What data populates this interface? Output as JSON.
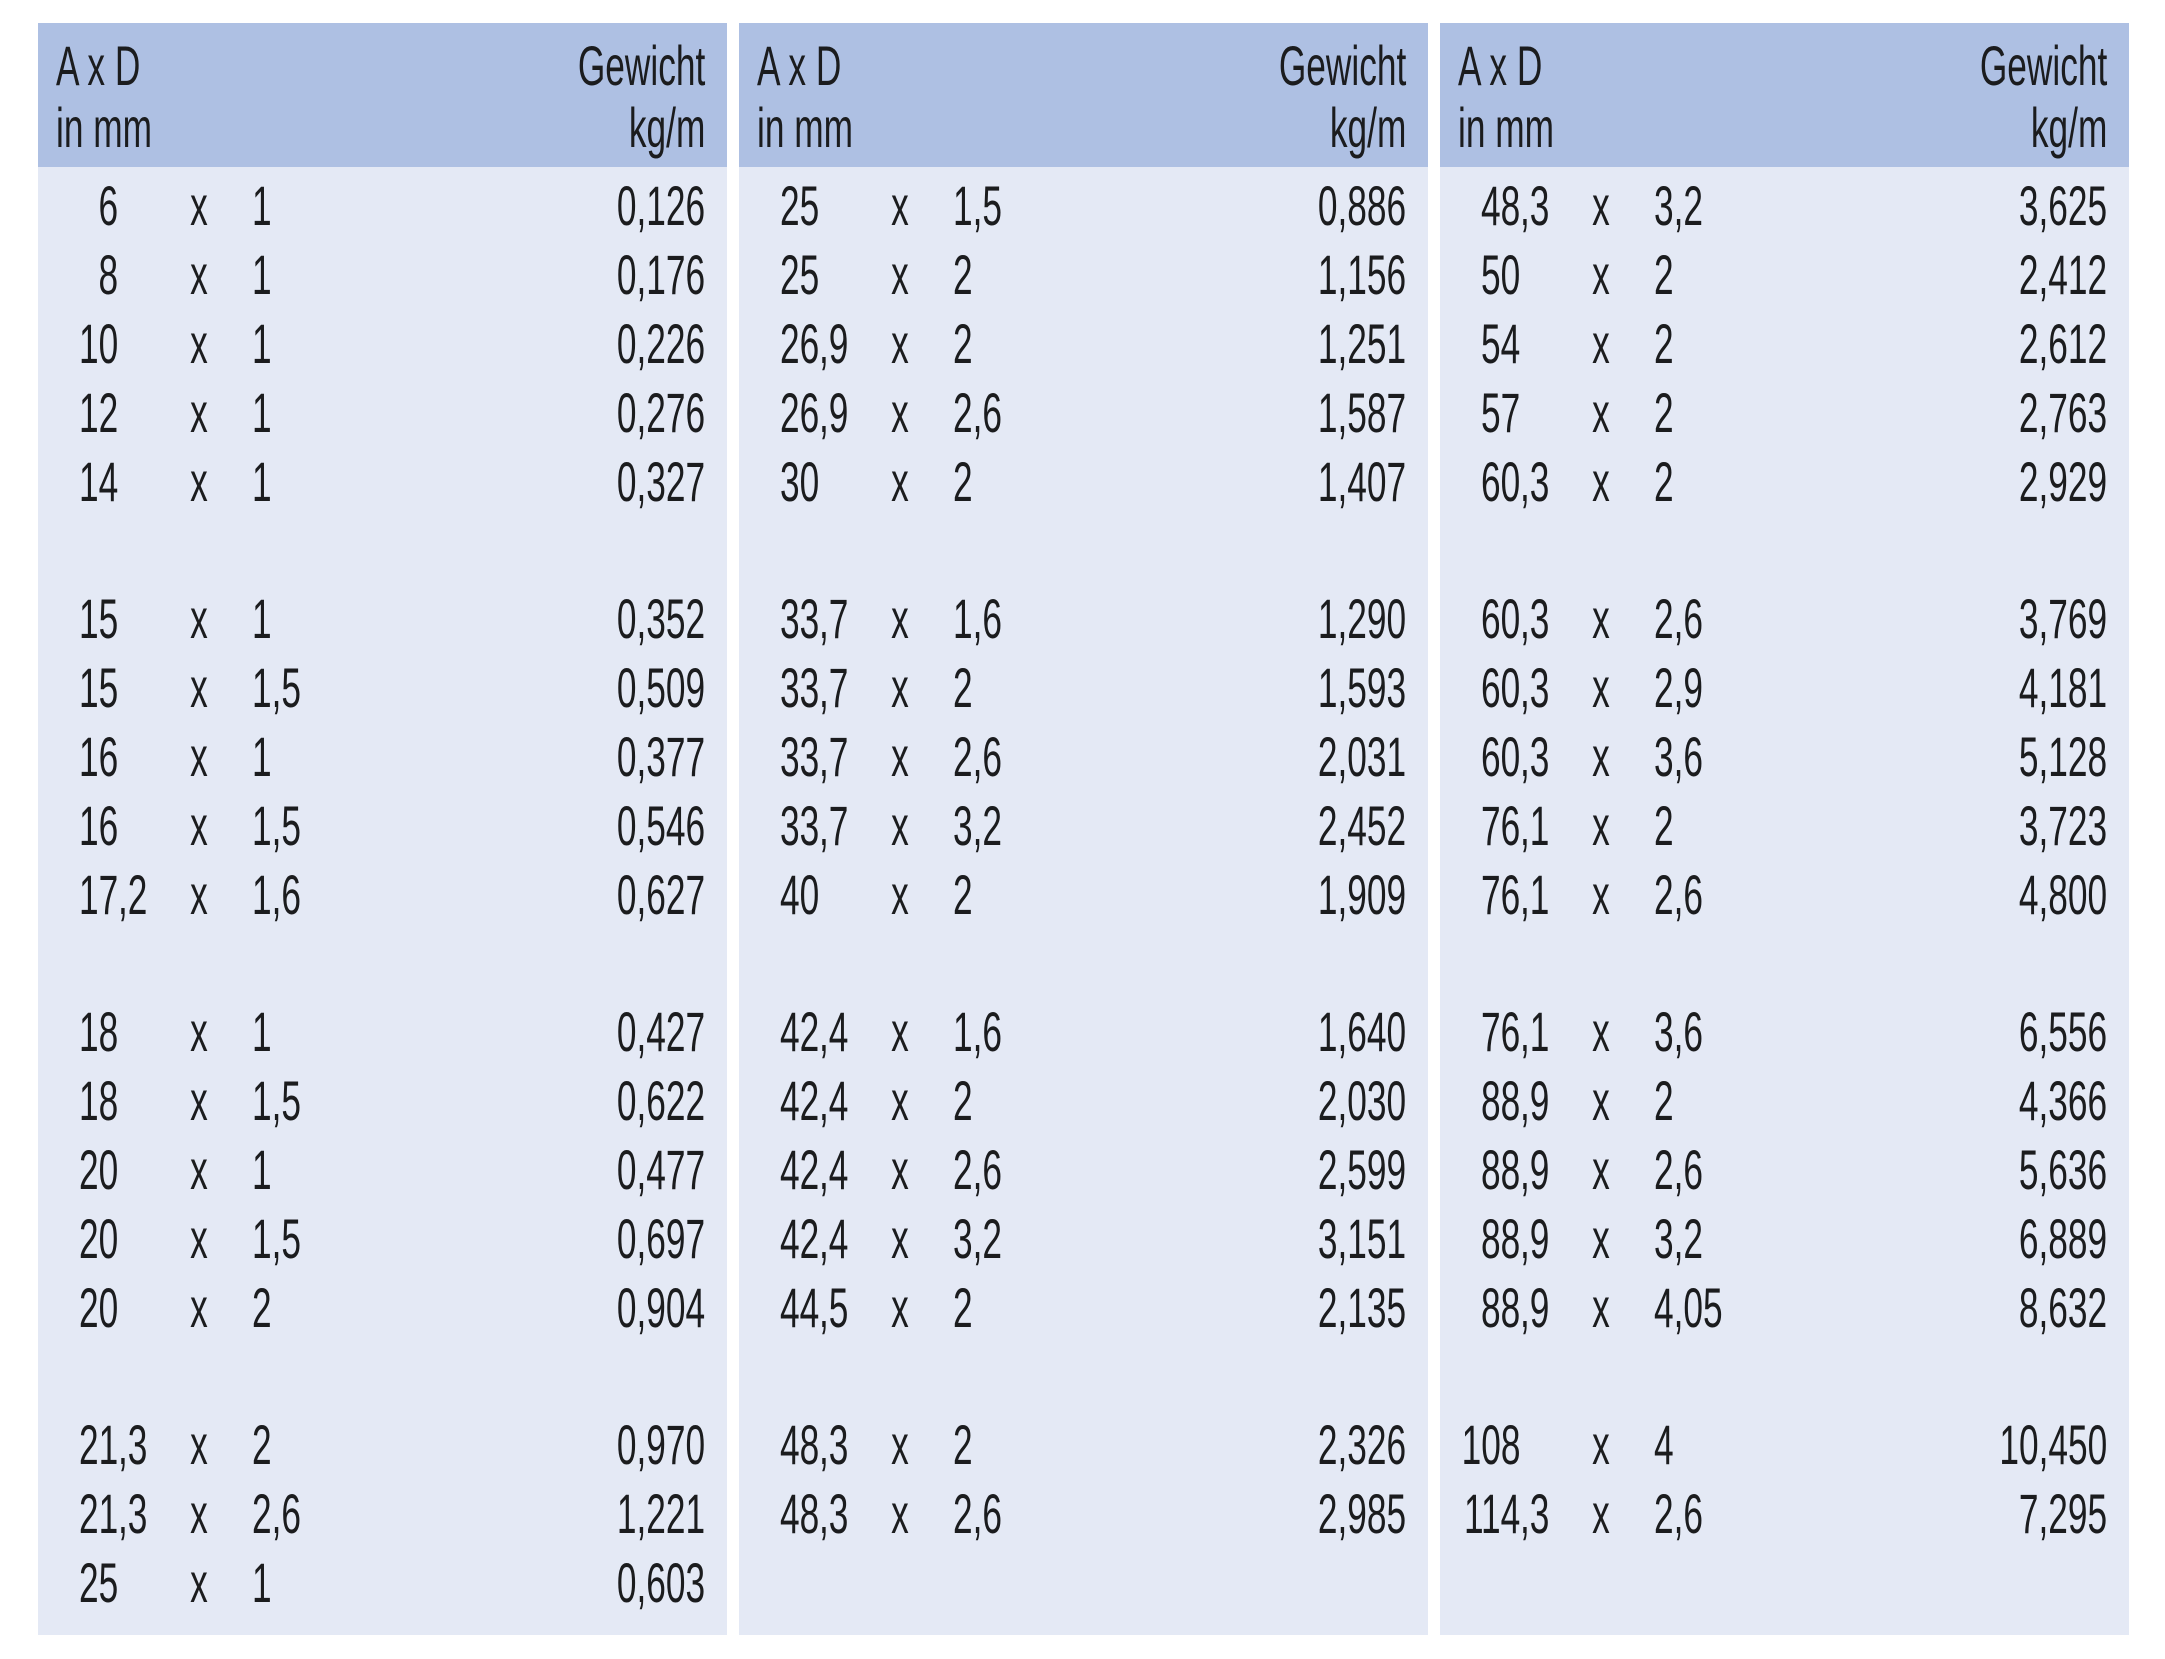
{
  "page_background": "#ffffff",
  "colors": {
    "header_bg": "#aec0e3",
    "body_bg": "#e4e9f5",
    "text": "#1b1c1e"
  },
  "column_header": {
    "dim_line1": "A x D",
    "dim_line2": "in mm",
    "weight_line1": "Gewicht",
    "weight_line2": "kg/m"
  },
  "separator": "x",
  "tables": [
    {
      "groups": [
        [
          {
            "a": "6",
            "d": "1",
            "weight": "0,126"
          },
          {
            "a": "8",
            "d": "1",
            "weight": "0,176"
          },
          {
            "a": "10",
            "d": "1",
            "weight": "0,226"
          },
          {
            "a": "12",
            "d": "1",
            "weight": "0,276"
          },
          {
            "a": "14",
            "d": "1",
            "weight": "0,327"
          }
        ],
        [
          {
            "a": "15",
            "d": "1",
            "weight": "0,352"
          },
          {
            "a": "15",
            "d": "1,5",
            "weight": "0,509"
          },
          {
            "a": "16",
            "d": "1",
            "weight": "0,377"
          },
          {
            "a": "16",
            "d": "1,5",
            "weight": "0,546"
          },
          {
            "a": "17,2",
            "d": "1,6",
            "weight": "0,627"
          }
        ],
        [
          {
            "a": "18",
            "d": "1",
            "weight": "0,427"
          },
          {
            "a": "18",
            "d": "1,5",
            "weight": "0,622"
          },
          {
            "a": "20",
            "d": "1",
            "weight": "0,477"
          },
          {
            "a": "20",
            "d": "1,5",
            "weight": "0,697"
          },
          {
            "a": "20",
            "d": "2",
            "weight": "0,904"
          }
        ],
        [
          {
            "a": "21,3",
            "d": "2",
            "weight": "0,970"
          },
          {
            "a": "21,3",
            "d": "2,6",
            "weight": "1,221"
          },
          {
            "a": "25",
            "d": "1",
            "weight": "0,603"
          }
        ]
      ]
    },
    {
      "groups": [
        [
          {
            "a": "25",
            "d": "1,5",
            "weight": "0,886"
          },
          {
            "a": "25",
            "d": "2",
            "weight": "1,156"
          },
          {
            "a": "26,9",
            "d": "2",
            "weight": "1,251"
          },
          {
            "a": "26,9",
            "d": "2,6",
            "weight": "1,587"
          },
          {
            "a": "30",
            "d": "2",
            "weight": "1,407"
          }
        ],
        [
          {
            "a": "33,7",
            "d": "1,6",
            "weight": "1,290"
          },
          {
            "a": "33,7",
            "d": "2",
            "weight": "1,593"
          },
          {
            "a": "33,7",
            "d": "2,6",
            "weight": "2,031"
          },
          {
            "a": "33,7",
            "d": "3,2",
            "weight": "2,452"
          },
          {
            "a": "40",
            "d": "2",
            "weight": "1,909"
          }
        ],
        [
          {
            "a": "42,4",
            "d": "1,6",
            "weight": "1,640"
          },
          {
            "a": "42,4",
            "d": "2",
            "weight": "2,030"
          },
          {
            "a": "42,4",
            "d": "2,6",
            "weight": "2,599"
          },
          {
            "a": "42,4",
            "d": "3,2",
            "weight": "3,151"
          },
          {
            "a": "44,5",
            "d": "2",
            "weight": "2,135"
          }
        ],
        [
          {
            "a": "48,3",
            "d": "2",
            "weight": "2,326"
          },
          {
            "a": "48,3",
            "d": "2,6",
            "weight": "2,985"
          }
        ]
      ]
    },
    {
      "groups": [
        [
          {
            "a": "48,3",
            "d": "3,2",
            "weight": "3,625"
          },
          {
            "a": "50",
            "d": "2",
            "weight": "2,412"
          },
          {
            "a": "54",
            "d": "2",
            "weight": "2,612"
          },
          {
            "a": "57",
            "d": "2",
            "weight": "2,763"
          },
          {
            "a": "60,3",
            "d": "2",
            "weight": "2,929"
          }
        ],
        [
          {
            "a": "60,3",
            "d": "2,6",
            "weight": "3,769"
          },
          {
            "a": "60,3",
            "d": "2,9",
            "weight": "4,181"
          },
          {
            "a": "60,3",
            "d": "3,6",
            "weight": "5,128"
          },
          {
            "a": "76,1",
            "d": "2",
            "weight": "3,723"
          },
          {
            "a": "76,1",
            "d": "2,6",
            "weight": "4,800"
          }
        ],
        [
          {
            "a": "76,1",
            "d": "3,6",
            "weight": "6,556"
          },
          {
            "a": "88,9",
            "d": "2",
            "weight": "4,366"
          },
          {
            "a": "88,9",
            "d": "2,6",
            "weight": "5,636"
          },
          {
            "a": "88,9",
            "d": "3,2",
            "weight": "6,889"
          },
          {
            "a": "88,9",
            "d": "4,05",
            "weight": "8,632"
          }
        ],
        [
          {
            "a": "108",
            "d": "4",
            "weight": "10,450"
          },
          {
            "a": "114,3",
            "d": "2,6",
            "weight": "7,295"
          }
        ]
      ]
    }
  ]
}
